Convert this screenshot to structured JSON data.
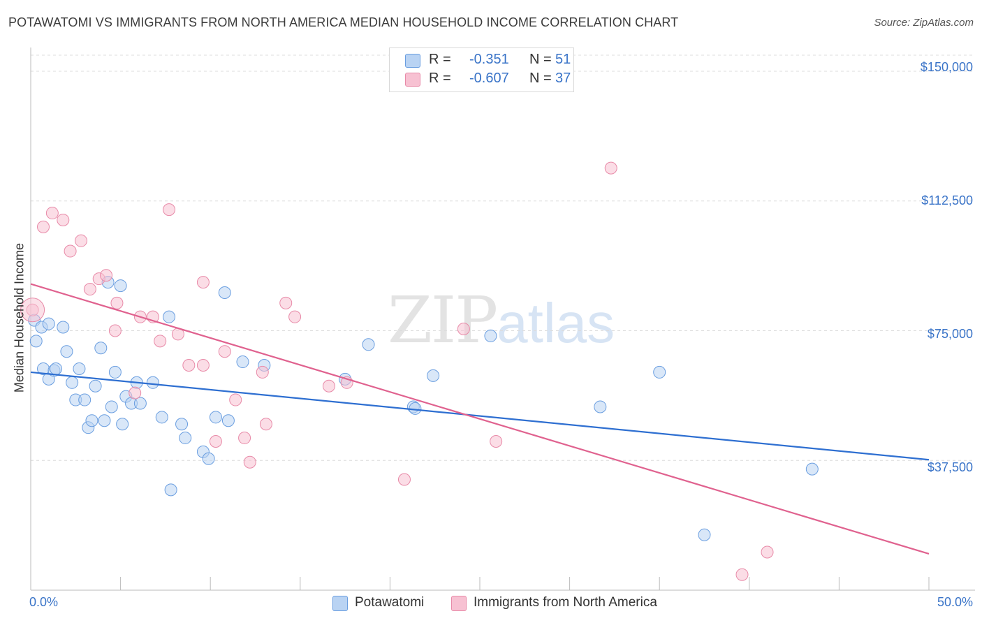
{
  "title": "POTAWATOMI VS IMMIGRANTS FROM NORTH AMERICA MEDIAN HOUSEHOLD INCOME CORRELATION CHART",
  "source": "Source: ZipAtlas.com",
  "watermark": {
    "zip": "ZIP",
    "atlas": "atlas"
  },
  "legend": {
    "r_label": "R =",
    "n_label": "N =",
    "rows": [
      {
        "name": "Potawatomi",
        "r": "-0.351",
        "n": "51",
        "color": "#a9c8f0"
      },
      {
        "name": "Immigrants from North America",
        "r": "-0.607",
        "n": "37",
        "color": "#f5b3c8"
      }
    ]
  },
  "chart_data": {
    "type": "scatter",
    "title": "POTAWATOMI VS IMMIGRANTS FROM NORTH AMERICA MEDIAN HOUSEHOLD INCOME CORRELATION CHART",
    "xlabel": "",
    "ylabel": "Median Household Income",
    "xlim": [
      0,
      50
    ],
    "ylim": [
      0,
      150000
    ],
    "x_tick_labels": [
      "0.0%",
      "50.0%"
    ],
    "y_ticks": [
      37500,
      75000,
      112500,
      150000
    ],
    "y_tick_labels": [
      "$37,500",
      "$75,000",
      "$112,500",
      "$150,000"
    ],
    "grid": "horizontal dashed",
    "series": [
      {
        "name": "Potawatomi",
        "color": "#6a9ee0",
        "fill": "#b9d3f3",
        "trend": {
          "x": [
            0,
            50
          ],
          "y": [
            63000,
            37700
          ]
        },
        "points": [
          [
            0.2,
            78000
          ],
          [
            0.3,
            72000
          ],
          [
            0.6,
            76000
          ],
          [
            0.7,
            64000
          ],
          [
            1.0,
            77000
          ],
          [
            1.0,
            61000
          ],
          [
            1.3,
            63500
          ],
          [
            1.4,
            64000
          ],
          [
            1.8,
            76000
          ],
          [
            2.0,
            69000
          ],
          [
            2.3,
            60000
          ],
          [
            2.5,
            55000
          ],
          [
            2.7,
            64000
          ],
          [
            3.0,
            55000
          ],
          [
            3.2,
            47000
          ],
          [
            3.4,
            49000
          ],
          [
            3.6,
            59000
          ],
          [
            3.9,
            70000
          ],
          [
            4.1,
            49000
          ],
          [
            4.3,
            89000
          ],
          [
            4.5,
            53000
          ],
          [
            4.7,
            63000
          ],
          [
            5.0,
            88000
          ],
          [
            5.1,
            48000
          ],
          [
            5.3,
            56000
          ],
          [
            5.6,
            54000
          ],
          [
            5.9,
            60000
          ],
          [
            6.1,
            54000
          ],
          [
            6.8,
            60000
          ],
          [
            7.3,
            50000
          ],
          [
            7.7,
            79000
          ],
          [
            7.8,
            29000
          ],
          [
            8.4,
            48000
          ],
          [
            8.6,
            44000
          ],
          [
            9.6,
            40000
          ],
          [
            9.9,
            38000
          ],
          [
            10.3,
            50000
          ],
          [
            10.8,
            86000
          ],
          [
            11.0,
            49000
          ],
          [
            11.8,
            66000
          ],
          [
            13.0,
            65000
          ],
          [
            17.5,
            61000
          ],
          [
            18.8,
            71000
          ],
          [
            21.3,
            53000
          ],
          [
            21.4,
            52500
          ],
          [
            22.4,
            62000
          ],
          [
            25.6,
            73500
          ],
          [
            31.7,
            53000
          ],
          [
            35.0,
            63000
          ],
          [
            43.5,
            35000
          ],
          [
            37.5,
            16000
          ]
        ]
      },
      {
        "name": "Immigrants from North America",
        "color": "#e88aa8",
        "fill": "#f7c1d2",
        "trend": {
          "x": [
            0,
            50
          ],
          "y": [
            88500,
            10500
          ]
        },
        "points": [
          [
            0.1,
            81000
          ],
          [
            0.7,
            105000
          ],
          [
            1.2,
            109000
          ],
          [
            1.8,
            107000
          ],
          [
            2.2,
            98000
          ],
          [
            2.8,
            101000
          ],
          [
            3.3,
            87000
          ],
          [
            3.8,
            90000
          ],
          [
            4.2,
            91000
          ],
          [
            4.8,
            83000
          ],
          [
            4.7,
            75000
          ],
          [
            5.8,
            57000
          ],
          [
            6.1,
            79000
          ],
          [
            6.8,
            79000
          ],
          [
            7.2,
            72000
          ],
          [
            7.7,
            110000
          ],
          [
            8.2,
            74000
          ],
          [
            8.8,
            65000
          ],
          [
            9.6,
            89000
          ],
          [
            9.6,
            65000
          ],
          [
            10.3,
            43000
          ],
          [
            10.8,
            69000
          ],
          [
            11.4,
            55000
          ],
          [
            11.9,
            44000
          ],
          [
            12.2,
            37000
          ],
          [
            12.9,
            63000
          ],
          [
            13.1,
            48000
          ],
          [
            14.2,
            83000
          ],
          [
            14.7,
            79000
          ],
          [
            16.6,
            59000
          ],
          [
            17.6,
            60000
          ],
          [
            20.8,
            32000
          ],
          [
            24.1,
            75500
          ],
          [
            25.9,
            43000
          ],
          [
            32.3,
            122000
          ],
          [
            41.0,
            11000
          ],
          [
            39.6,
            4500
          ]
        ]
      }
    ]
  }
}
